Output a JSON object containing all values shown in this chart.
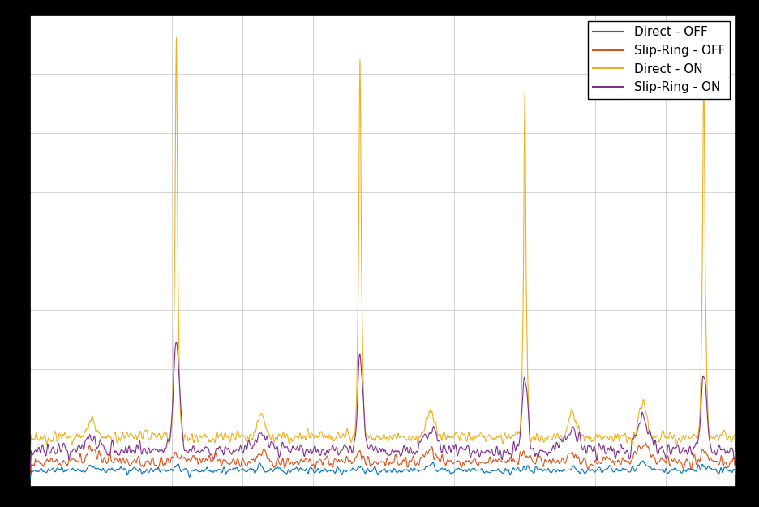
{
  "title": "",
  "xlabel": "",
  "ylabel": "",
  "legend_entries": [
    "Direct - OFF",
    "Slip-Ring - OFF",
    "Direct - ON",
    "Slip-Ring - ON"
  ],
  "colors": [
    "#0072bd",
    "#d95319",
    "#edb120",
    "#7e2f8e"
  ],
  "n_points": 1500,
  "background_color": "#ffffff",
  "grid_color": "#cccccc",
  "legend_loc": "upper right",
  "fig_facecolor": "#000000"
}
